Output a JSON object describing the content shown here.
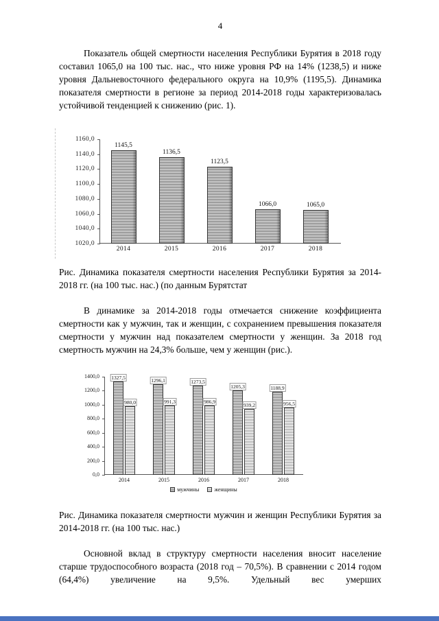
{
  "page": {
    "number": "4",
    "paragraph1": "Показатель общей смертности населения Республики Бурятия в 2018 году составил 1065,0 на 100 тыс. нас., что ниже уровня РФ на 14% (1238,5) и ниже уровня Дальневосточного федерального округа на 10,9% (1195,5). Динамика показателя смертности в регионе за период 2014-2018 годы характеризовалась устойчивой тенденцией к снижению (рис. 1).",
    "caption1": "Рис. Динамика показателя смертности населения Республики Бурятия за 2014-2018 гг. (на 100 тыс. нас.) (по данным Бурятстат",
    "paragraph2": "В динамике за 2014-2018 годы отмечается снижение коэффициента смертности как у мужчин, так и женщин, с сохранением превышения показателя смертности у мужчин над показателем смертности у женщин. За 2018 год смертность мужчин на 24,3% больше, чем у женщин (рис.).",
    "caption2": "Рис. Динамика показателя смертности мужчин и женщин Республики Бурятия за 2014-2018 гг. (на 100 тыс. нас.)",
    "paragraph3": "Основной вклад в структуру смертности населения вносит население старше трудоспособного возраста (2018 год – 70,5%). В сравнении с 2014 годом (64,4%) увеличение на 9,5%. Удельный вес умерших"
  },
  "colors": {
    "bottom_bar": "#4a72c0",
    "bar_gray": "#ababab",
    "bar_light_gray": "#d2d2d2"
  },
  "chart_data": [
    {
      "type": "bar",
      "title": "",
      "xlabel": "",
      "ylabel": "",
      "categories": [
        "2014",
        "2015",
        "2016",
        "2017",
        "2018"
      ],
      "values": [
        1145.5,
        1136.5,
        1123.5,
        1066.0,
        1065.0
      ],
      "data_labels": [
        "1145,5",
        "1136,5",
        "1123,5",
        "1066,0",
        "1065,0"
      ],
      "ylim": [
        1020,
        1160
      ],
      "yticks": [
        {
          "value": 1160,
          "label": "1160,0"
        },
        {
          "value": 1140,
          "label": "1140,0"
        },
        {
          "value": 1120,
          "label": "1120,0"
        },
        {
          "value": 1100,
          "label": "1100,0"
        },
        {
          "value": 1080,
          "label": "1080,0"
        },
        {
          "value": 1060,
          "label": "1060,0"
        },
        {
          "value": 1040,
          "label": "1040,0"
        },
        {
          "value": 1020,
          "label": "1020,0"
        }
      ],
      "grid": false,
      "legend_position": "none"
    },
    {
      "type": "bar",
      "title": "",
      "xlabel": "",
      "ylabel": "",
      "categories": [
        "2014",
        "2015",
        "2016",
        "2017",
        "2018"
      ],
      "series": [
        {
          "name": "мужчины",
          "values": [
            1327.5,
            1296.1,
            1273.5,
            1205.3,
            1188.9
          ],
          "labels": [
            "1327,5",
            "1296,1",
            "1273,5",
            "1205,3",
            "1188,9"
          ]
        },
        {
          "name": "женщины",
          "values": [
            980.0,
            991.3,
            986.9,
            939.2,
            956.5
          ],
          "labels": [
            "980,0",
            "991,3",
            "986,9",
            "939,2",
            "956,5"
          ]
        }
      ],
      "ylim": [
        0,
        1400
      ],
      "yticks": [
        {
          "value": 1400,
          "label": "1400,0"
        },
        {
          "value": 1200,
          "label": "1200,0"
        },
        {
          "value": 1000,
          "label": "1000,0"
        },
        {
          "value": 800,
          "label": "800,0"
        },
        {
          "value": 600,
          "label": "600,0"
        },
        {
          "value": 400,
          "label": "400,0"
        },
        {
          "value": 200,
          "label": "200,0"
        },
        {
          "value": 0,
          "label": "0,0"
        }
      ],
      "grid": false,
      "legend_position": "bottom"
    }
  ]
}
